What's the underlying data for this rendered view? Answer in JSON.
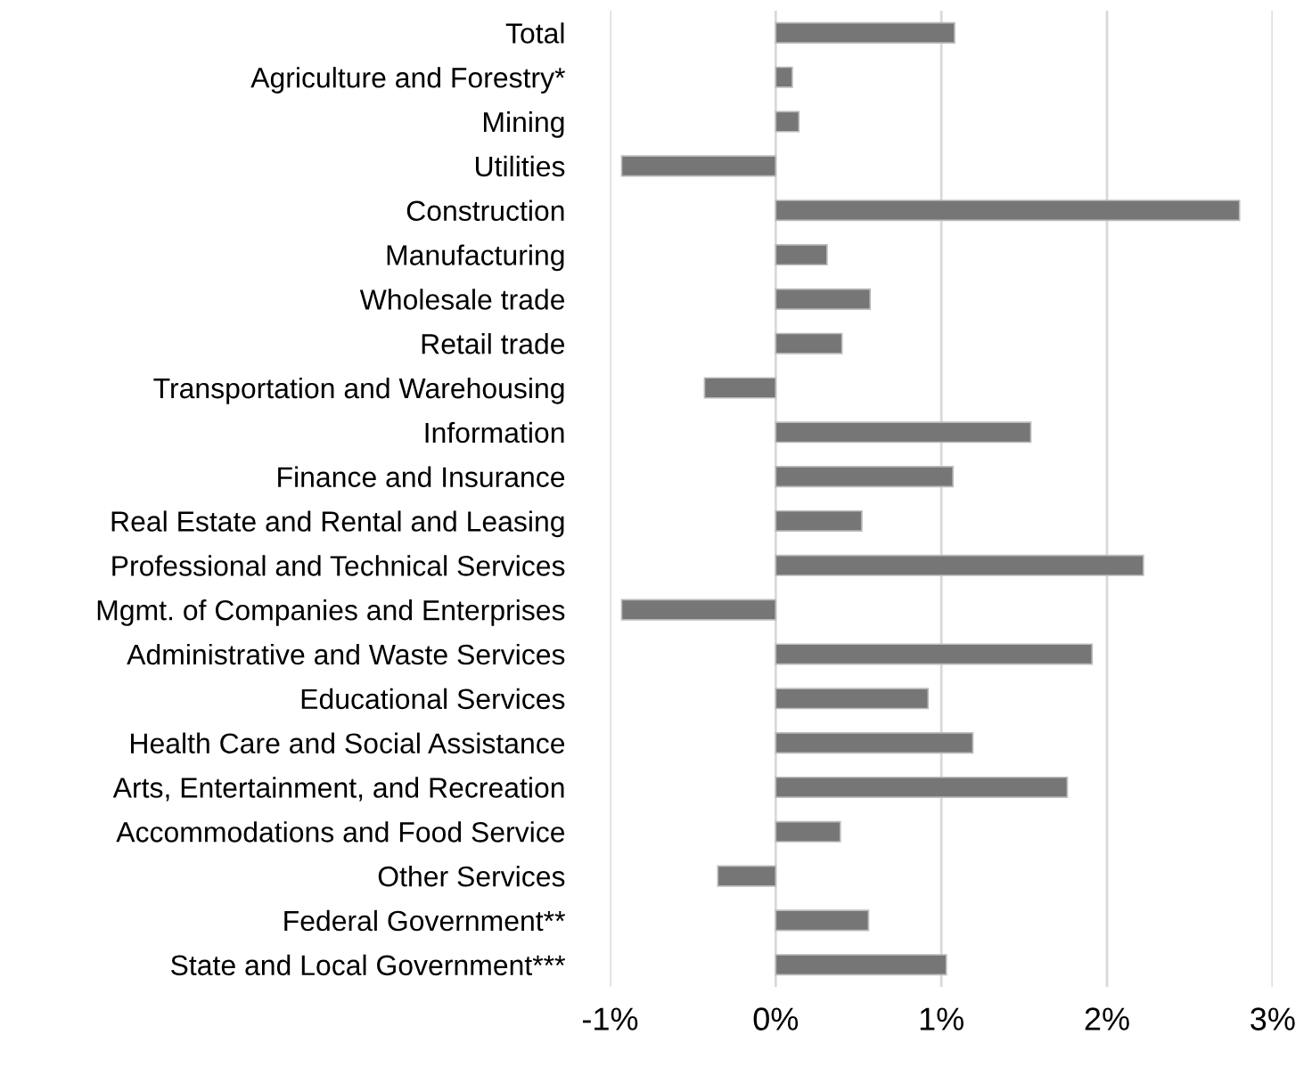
{
  "chart_data": {
    "type": "bar",
    "orientation": "horizontal",
    "categories": [
      "Total",
      "Agriculture and Forestry*",
      "Mining",
      "Utilities",
      "Construction",
      "Manufacturing",
      "Wholesale trade",
      "Retail trade",
      "Transportation and Warehousing",
      "Information",
      "Finance and Insurance",
      "Real Estate and Rental and Leasing",
      "Professional and Technical Services",
      "Mgmt. of Companies and Enterprises",
      "Administrative and Waste Services",
      "Educational Services",
      "Health Care and Social Assistance",
      "Arts, Entertainment, and Recreation",
      "Accommodations and Food Service",
      "Other Services",
      "Federal Government**",
      "State and Local Government***"
    ],
    "values": [
      1.08,
      0.1,
      0.14,
      -0.93,
      2.8,
      0.31,
      0.57,
      0.4,
      -0.43,
      1.54,
      1.07,
      0.52,
      2.22,
      -0.93,
      1.91,
      0.92,
      1.19,
      1.76,
      0.39,
      -0.35,
      0.56,
      1.03
    ],
    "color": "#767676",
    "xlim": [
      -1,
      3
    ],
    "xticks": [
      {
        "value": -1,
        "label": "-1%"
      },
      {
        "value": 0,
        "label": "0%"
      },
      {
        "value": 1,
        "label": "1%"
      },
      {
        "value": 2,
        "label": "2%"
      },
      {
        "value": 3,
        "label": "3%"
      }
    ],
    "grid": "x"
  }
}
